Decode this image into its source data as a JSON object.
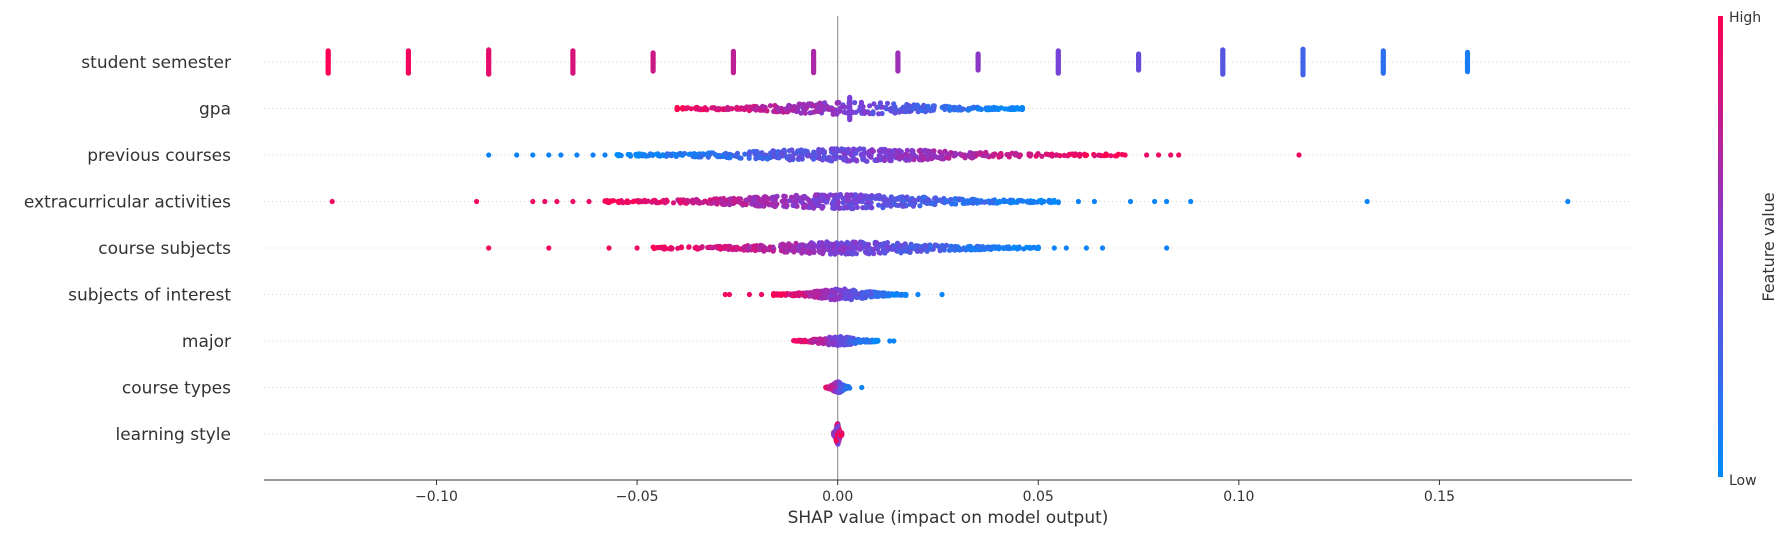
{
  "chart_data": {
    "type": "scatter",
    "subtype": "shap-beeswarm",
    "xlabel": "SHAP value (impact on model output)",
    "x_ticks": [
      -0.1,
      -0.05,
      0.0,
      0.05,
      0.1,
      0.15
    ],
    "x_tick_labels": [
      "−0.10",
      "−0.05",
      "0.00",
      "0.05",
      "0.10",
      "0.15"
    ],
    "xlim": [
      -0.143,
      0.198
    ],
    "grid": false,
    "features": [
      {
        "name": "student semester",
        "points": [
          {
            "x": -0.127,
            "value": 1.0,
            "spread": 0.35
          },
          {
            "x": -0.107,
            "value": 0.95,
            "spread": 0.35
          },
          {
            "x": -0.087,
            "value": 0.9,
            "spread": 0.38
          },
          {
            "x": -0.066,
            "value": 0.85,
            "spread": 0.35
          },
          {
            "x": -0.046,
            "value": 0.8,
            "spread": 0.28
          },
          {
            "x": -0.026,
            "value": 0.75,
            "spread": 0.33
          },
          {
            "x": -0.006,
            "value": 0.68,
            "spread": 0.33
          },
          {
            "x": 0.015,
            "value": 0.62,
            "spread": 0.28
          },
          {
            "x": 0.035,
            "value": 0.56,
            "spread": 0.25
          },
          {
            "x": 0.055,
            "value": 0.48,
            "spread": 0.35
          },
          {
            "x": 0.075,
            "value": 0.42,
            "spread": 0.25
          },
          {
            "x": 0.096,
            "value": 0.35,
            "spread": 0.38
          },
          {
            "x": 0.116,
            "value": 0.26,
            "spread": 0.4
          },
          {
            "x": 0.136,
            "value": 0.18,
            "spread": 0.35
          },
          {
            "x": 0.157,
            "value": 0.1,
            "spread": 0.3
          }
        ],
        "clusters": []
      },
      {
        "name": "gpa",
        "points": [
          {
            "x": 0.003,
            "value": 0.5,
            "spread": 0.35
          }
        ],
        "clusters": [
          {
            "x0": -0.04,
            "x1": 0.046,
            "low_side": "right",
            "count": 420,
            "peak": 0.003,
            "width": 0.04,
            "maxspread": 0.16,
            "offset": 0.0
          }
        ]
      },
      {
        "name": "previous courses",
        "points": [
          {
            "x": -0.087,
            "value": 0.05,
            "spread": 0.0
          },
          {
            "x": -0.08,
            "value": 0.05,
            "spread": 0.0
          },
          {
            "x": -0.076,
            "value": 0.05,
            "spread": 0.0
          },
          {
            "x": -0.072,
            "value": 0.06,
            "spread": 0.0
          },
          {
            "x": -0.069,
            "value": 0.06,
            "spread": 0.0
          },
          {
            "x": -0.065,
            "value": 0.06,
            "spread": 0.0
          },
          {
            "x": -0.061,
            "value": 0.07,
            "spread": 0.0
          },
          {
            "x": -0.058,
            "value": 0.07,
            "spread": 0.0
          },
          {
            "x": 0.115,
            "value": 0.95,
            "spread": 0.0
          },
          {
            "x": 0.085,
            "value": 0.95,
            "spread": 0.0
          },
          {
            "x": 0.083,
            "value": 0.93,
            "spread": 0.0
          },
          {
            "x": 0.08,
            "value": 0.93,
            "spread": 0.0
          },
          {
            "x": 0.077,
            "value": 0.92,
            "spread": 0.0
          }
        ],
        "clusters": [
          {
            "x0": -0.055,
            "x1": 0.072,
            "low_side": "left",
            "count": 520,
            "peak": 0.004,
            "width": 0.022,
            "maxspread": 0.16,
            "offset": 0.0
          }
        ]
      },
      {
        "name": "extracurricular activities",
        "points": [
          {
            "x": -0.126,
            "value": 0.95,
            "spread": 0.0
          },
          {
            "x": -0.09,
            "value": 0.95,
            "spread": 0.0
          },
          {
            "x": -0.076,
            "value": 0.93,
            "spread": 0.0
          },
          {
            "x": -0.073,
            "value": 0.92,
            "spread": 0.0
          },
          {
            "x": -0.07,
            "value": 0.93,
            "spread": 0.0
          },
          {
            "x": -0.066,
            "value": 0.92,
            "spread": 0.0
          },
          {
            "x": -0.062,
            "value": 0.92,
            "spread": 0.0
          },
          {
            "x": 0.06,
            "value": 0.06,
            "spread": 0.0
          },
          {
            "x": 0.064,
            "value": 0.06,
            "spread": 0.0
          },
          {
            "x": 0.073,
            "value": 0.05,
            "spread": 0.0
          },
          {
            "x": 0.079,
            "value": 0.05,
            "spread": 0.0
          },
          {
            "x": 0.082,
            "value": 0.05,
            "spread": 0.0
          },
          {
            "x": 0.088,
            "value": 0.05,
            "spread": 0.0
          },
          {
            "x": 0.132,
            "value": 0.05,
            "spread": 0.0
          },
          {
            "x": 0.182,
            "value": 0.05,
            "spread": 0.0
          }
        ],
        "clusters": [
          {
            "x0": -0.058,
            "x1": 0.055,
            "low_side": "right",
            "count": 560,
            "peak": 0.0,
            "width": 0.022,
            "maxspread": 0.18,
            "offset": 0.0
          }
        ]
      },
      {
        "name": "course subjects",
        "points": [
          {
            "x": -0.087,
            "value": 0.95,
            "spread": 0.0
          },
          {
            "x": -0.072,
            "value": 0.95,
            "spread": 0.0
          },
          {
            "x": -0.057,
            "value": 0.94,
            "spread": 0.0
          },
          {
            "x": -0.05,
            "value": 0.93,
            "spread": 0.0
          },
          {
            "x": 0.054,
            "value": 0.06,
            "spread": 0.0
          },
          {
            "x": 0.057,
            "value": 0.06,
            "spread": 0.0
          },
          {
            "x": 0.062,
            "value": 0.05,
            "spread": 0.0
          },
          {
            "x": 0.066,
            "value": 0.05,
            "spread": 0.0
          },
          {
            "x": 0.082,
            "value": 0.05,
            "spread": 0.0
          }
        ],
        "clusters": [
          {
            "x0": -0.046,
            "x1": 0.05,
            "low_side": "right",
            "count": 480,
            "peak": 0.003,
            "width": 0.02,
            "maxspread": 0.16,
            "offset": 0.0
          }
        ]
      },
      {
        "name": "subjects of interest",
        "points": [
          {
            "x": -0.028,
            "value": 0.95,
            "spread": 0.0
          },
          {
            "x": -0.027,
            "value": 0.95,
            "spread": 0.0
          },
          {
            "x": -0.022,
            "value": 0.94,
            "spread": 0.0
          },
          {
            "x": -0.019,
            "value": 0.94,
            "spread": 0.0
          },
          {
            "x": 0.02,
            "value": 0.05,
            "spread": 0.0
          },
          {
            "x": 0.026,
            "value": 0.05,
            "spread": 0.0
          }
        ],
        "clusters": [
          {
            "x0": -0.016,
            "x1": 0.017,
            "low_side": "right",
            "count": 300,
            "peak": 0.001,
            "width": 0.008,
            "maxspread": 0.14,
            "offset": 0.0
          }
        ]
      },
      {
        "name": "major",
        "points": [
          {
            "x": 0.013,
            "value": 0.05,
            "spread": 0.0
          },
          {
            "x": 0.014,
            "value": 0.05,
            "spread": 0.0
          }
        ],
        "clusters": [
          {
            "x0": -0.011,
            "x1": 0.01,
            "low_side": "right",
            "count": 220,
            "peak": 0.0,
            "width": 0.005,
            "maxspread": 0.12,
            "offset": 0.0
          }
        ]
      },
      {
        "name": "course types",
        "points": [
          {
            "x": 0.006,
            "value": 0.05,
            "spread": 0.0
          }
        ],
        "clusters": [
          {
            "x0": -0.003,
            "x1": 0.003,
            "low_side": "right",
            "count": 150,
            "peak": 0.0,
            "width": 0.0015,
            "maxspread": 0.14,
            "offset": 0.0
          }
        ]
      },
      {
        "name": "learning style",
        "points": [],
        "clusters": [
          {
            "x0": -0.001,
            "x1": 0.001,
            "low_side": "mixed",
            "count": 160,
            "peak": 0.0,
            "width": 0.0006,
            "maxspread": 0.26,
            "offset": 0.0
          }
        ]
      }
    ],
    "colorbar": {
      "title": "Feature value",
      "high_label": "High",
      "low_label": "Low",
      "high_color": "#ff0052",
      "mid_color": "#7b3fd6",
      "low_color": "#008bfb"
    }
  }
}
